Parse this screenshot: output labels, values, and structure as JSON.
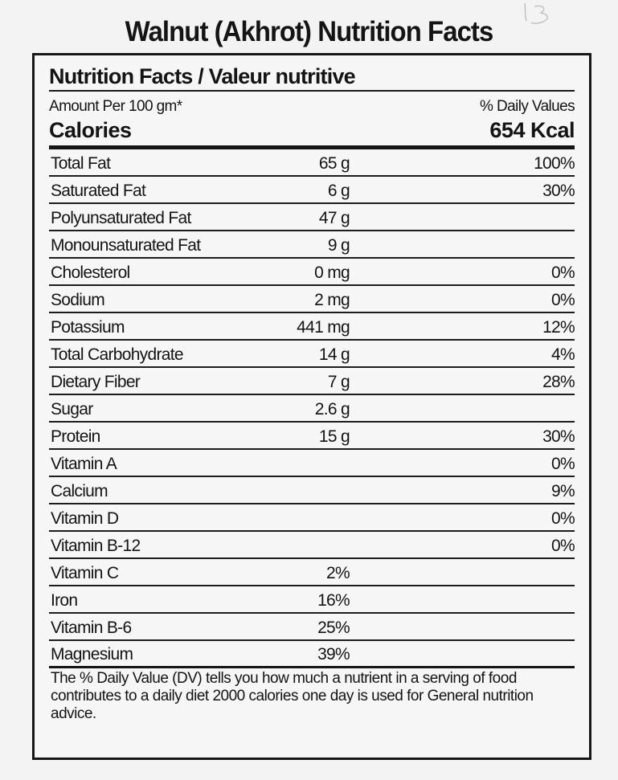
{
  "page_title": "Walnut (Akhrot) Nutrition Facts",
  "panel": {
    "heading": "Nutrition Facts / Valeur nutritive",
    "amount_per": "Amount Per 100 gm*",
    "daily_values_header": "% Daily Values",
    "calories_label": "Calories",
    "calories_value": "654 Kcal",
    "nutrients": [
      {
        "name": "Total Fat",
        "amount": "65 g",
        "dv": "100%"
      },
      {
        "name": "Saturated Fat",
        "amount": "6 g",
        "dv": "30%"
      },
      {
        "name": "Polyunsaturated Fat",
        "amount": "47 g",
        "dv": ""
      },
      {
        "name": "Monounsaturated Fat",
        "amount": "9 g",
        "dv": ""
      },
      {
        "name": "Cholesterol",
        "amount": "0 mg",
        "dv": "0%"
      },
      {
        "name": "Sodium",
        "amount": "2 mg",
        "dv": "0%"
      },
      {
        "name": "Potassium",
        "amount": "441 mg",
        "dv": "12%"
      },
      {
        "name": "Total Carbohydrate",
        "amount": "14 g",
        "dv": "4%"
      },
      {
        "name": "Dietary Fiber",
        "amount": "7 g",
        "dv": "28%"
      },
      {
        "name": "Sugar",
        "amount": "2.6 g",
        "dv": ""
      },
      {
        "name": "Protein",
        "amount": "15 g",
        "dv": "30%"
      },
      {
        "name": "Vitamin A",
        "amount": "",
        "dv": "0%"
      },
      {
        "name": "Calcium",
        "amount": "",
        "dv": "9%"
      },
      {
        "name": "Vitamin D",
        "amount": "",
        "dv": "0%"
      },
      {
        "name": "Vitamin B-12",
        "amount": "",
        "dv": "0%"
      },
      {
        "name": "Vitamin C",
        "amount": "2%",
        "dv": ""
      },
      {
        "name": "Iron",
        "amount": "16%",
        "dv": ""
      },
      {
        "name": "Vitamin B-6",
        "amount": "25%",
        "dv": ""
      },
      {
        "name": "Magnesium",
        "amount": "39%",
        "dv": ""
      }
    ],
    "footnote": "The % Daily Value (DV) tells you how much a nutrient in a serving of food contributes to a daily diet 2000 calories one day is used for General nutrition advice."
  }
}
